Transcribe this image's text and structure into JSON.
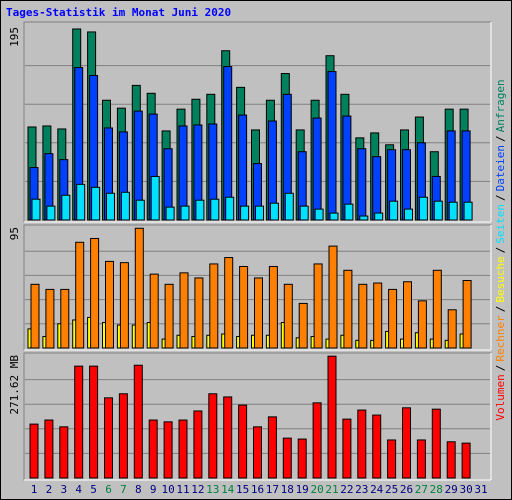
{
  "chart_data": [
    {
      "type": "bar",
      "title": "Tages-Statistik im Monat Juni 2020",
      "categories": [
        "1",
        "2",
        "3",
        "4",
        "5",
        "6",
        "7",
        "8",
        "9",
        "10",
        "11",
        "12",
        "13",
        "14",
        "15",
        "16",
        "17",
        "18",
        "19",
        "20",
        "21",
        "22",
        "23",
        "24",
        "25",
        "26",
        "27",
        "28",
        "29",
        "30",
        "31"
      ],
      "highlight": [
        5,
        6,
        12,
        13,
        19,
        20,
        26,
        27
      ],
      "highlight_color": "#008040",
      "label_color": "#000080",
      "ylim": [
        0,
        195
      ],
      "yticks": [
        195
      ],
      "series": [
        {
          "name": "Anfragen",
          "color": "#00805c",
          "values": [
            94,
            95,
            92,
            193,
            190,
            121,
            113,
            136,
            128,
            90,
            112,
            122,
            127,
            171,
            134,
            91,
            121,
            148,
            91,
            121,
            166,
            127,
            83,
            88,
            76,
            91,
            104,
            69,
            112,
            112,
            null
          ]
        },
        {
          "name": "Dateien",
          "color": "#0040ff",
          "values": [
            53,
            67,
            61,
            154,
            146,
            93,
            89,
            110,
            107,
            72,
            95,
            96,
            97,
            155,
            106,
            57,
            100,
            127,
            69,
            103,
            150,
            105,
            72,
            64,
            71,
            71,
            78,
            44,
            90,
            90,
            null
          ]
        },
        {
          "name": "Seiten",
          "color": "#00e0ff",
          "values": [
            21,
            14,
            25,
            36,
            33,
            27,
            28,
            20,
            44,
            13,
            14,
            20,
            21,
            23,
            14,
            14,
            17,
            27,
            14,
            11,
            7,
            16,
            4,
            7,
            19,
            11,
            23,
            19,
            18,
            18,
            null
          ]
        }
      ]
    },
    {
      "type": "bar",
      "ylim": [
        0,
        95
      ],
      "yticks": [
        95
      ],
      "series": [
        {
          "name": "Besuche",
          "color": "#ffff00",
          "values": [
            15,
            9,
            19,
            22,
            24,
            20,
            18,
            18,
            20,
            7,
            10,
            9,
            10,
            11,
            9,
            10,
            10,
            20,
            8,
            9,
            7,
            10,
            6,
            6,
            13,
            7,
            12,
            7,
            6,
            11,
            null
          ]
        },
        {
          "name": "Rechner",
          "color": "#ff8000",
          "values": [
            50,
            46,
            46,
            83,
            86,
            68,
            67,
            94,
            58,
            50,
            59,
            55,
            66,
            71,
            64,
            55,
            64,
            50,
            35,
            66,
            80,
            61,
            50,
            51,
            46,
            52,
            37,
            61,
            30,
            53,
            null
          ]
        }
      ]
    },
    {
      "type": "bar",
      "ylim": [
        0,
        271.62
      ],
      "yticks": [
        {
          "value": 271.62,
          "label": "271.62 MB"
        }
      ],
      "series": [
        {
          "name": "Volumen",
          "color": "#ff0000",
          "values": [
            119,
            128,
            113,
            247,
            247,
            177,
            186,
            249,
            128,
            124,
            128,
            148,
            186,
            179,
            161,
            113,
            135,
            88,
            86,
            166,
            269,
            130,
            150,
            139,
            84,
            155,
            84,
            152,
            80,
            77,
            null
          ]
        }
      ]
    }
  ],
  "legend_separator": "/"
}
